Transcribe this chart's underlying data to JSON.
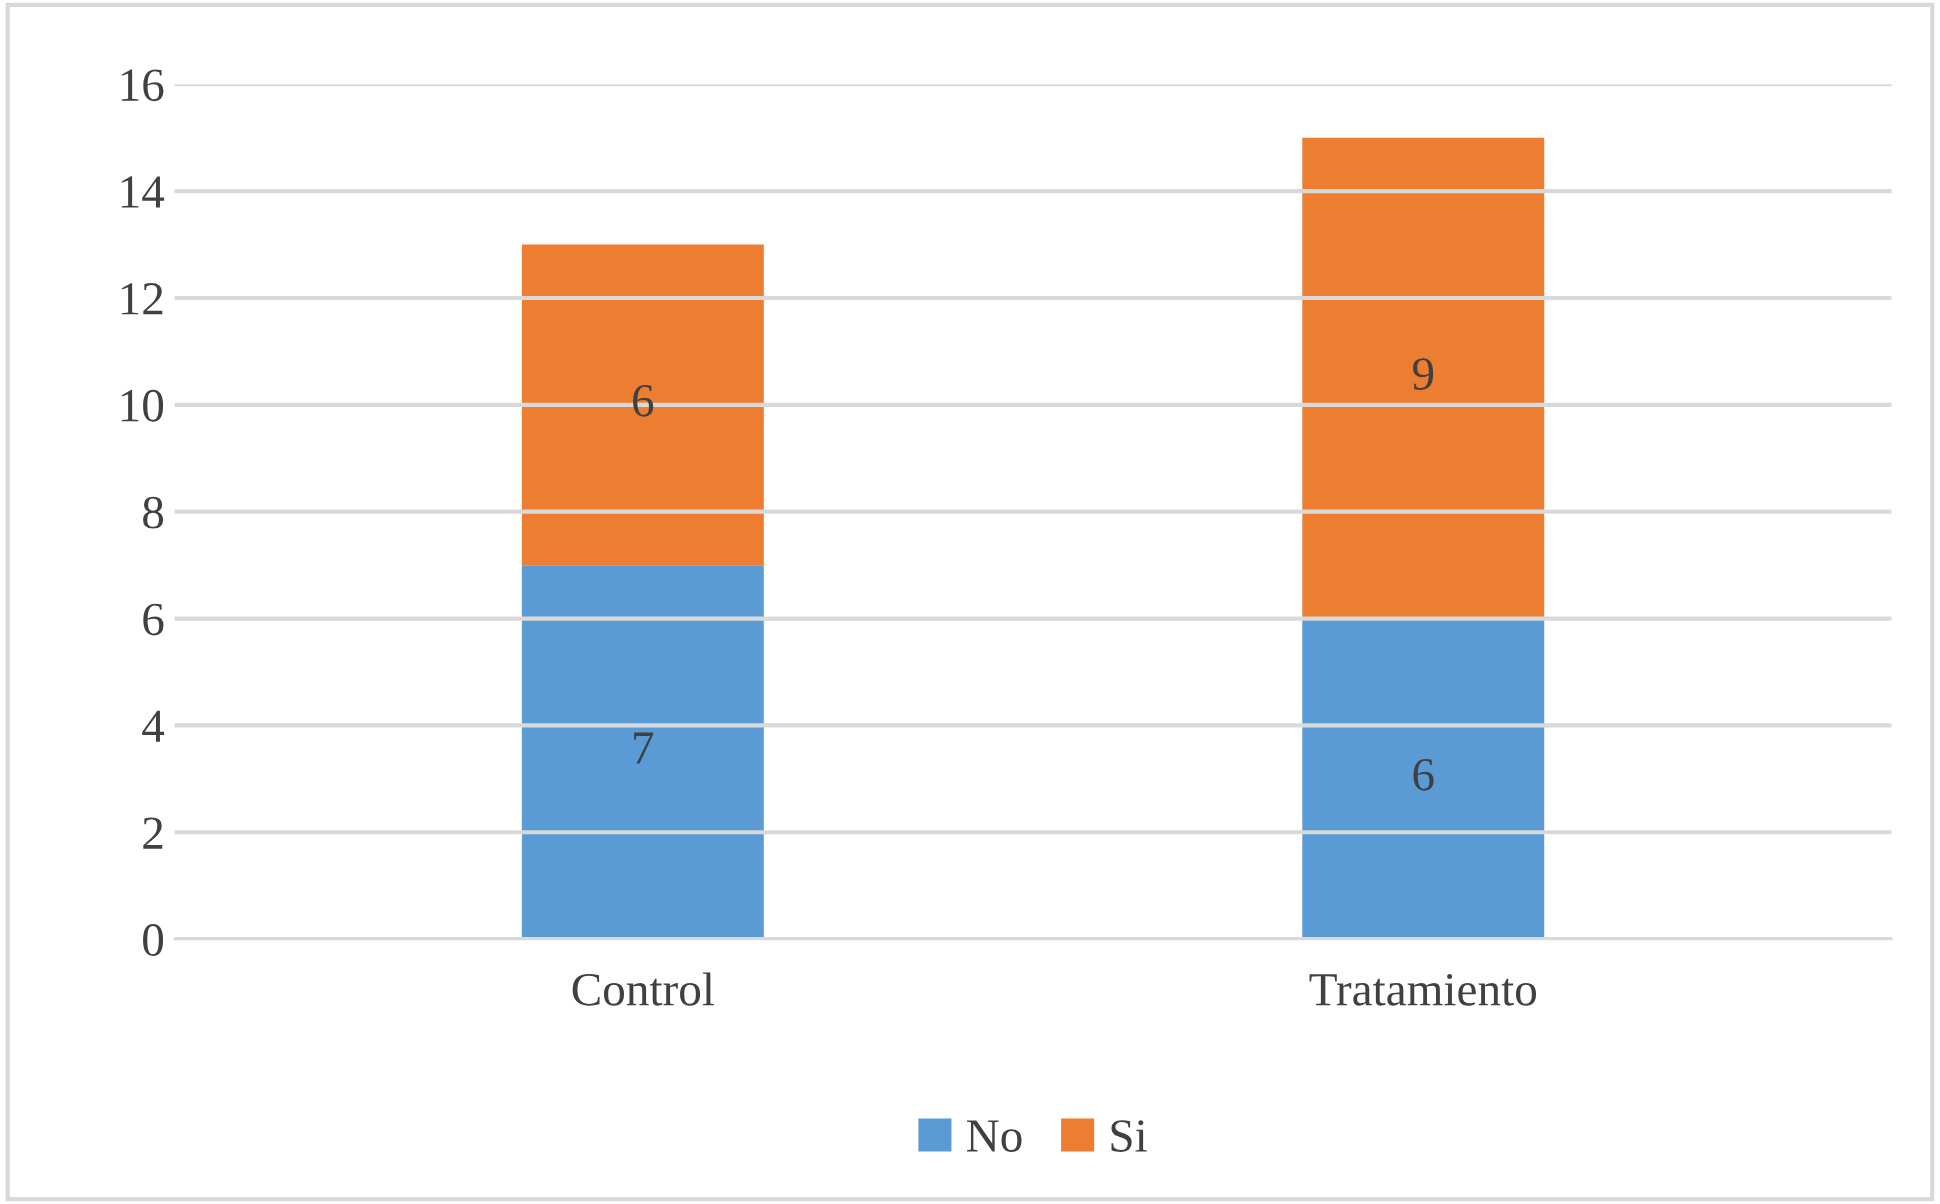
{
  "chart_data": {
    "type": "bar",
    "stacked": true,
    "categories": [
      "Control",
      "Tratamiento"
    ],
    "series": [
      {
        "name": "No",
        "color": "#5b9bd5",
        "values": [
          7,
          6
        ]
      },
      {
        "name": "Si",
        "color": "#ed7d31",
        "values": [
          6,
          9
        ]
      }
    ],
    "ylim": [
      0,
      16
    ],
    "yticks": [
      0,
      2,
      4,
      6,
      8,
      10,
      12,
      14,
      16
    ],
    "grid": "y",
    "legend": "bottom",
    "data_labels": true
  }
}
